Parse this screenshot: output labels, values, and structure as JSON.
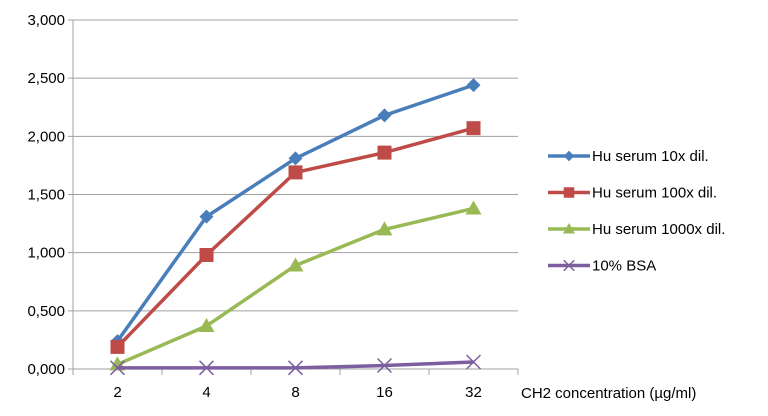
{
  "chart_data": {
    "type": "line",
    "title": "",
    "xlabel": "CH2 concentration (µg/ml)",
    "ylabel": "",
    "categories": [
      "2",
      "4",
      "8",
      "16",
      "32"
    ],
    "ylim": [
      0,
      3
    ],
    "yticks": [
      0,
      0.5,
      1,
      1.5,
      2,
      2.5,
      3
    ],
    "ytick_labels": [
      "0,000",
      "0,500",
      "1,000",
      "1,500",
      "2,000",
      "2,500",
      "3,000"
    ],
    "grid": "horizontal",
    "legend_position": "right",
    "series": [
      {
        "name": "Hu serum 10x dil.",
        "color": "#4a7ebb",
        "marker": "diamond",
        "values": [
          0.24,
          1.31,
          1.81,
          2.18,
          2.44
        ]
      },
      {
        "name": "Hu serum 100x dil.",
        "color": "#be4b48",
        "marker": "square",
        "values": [
          0.19,
          0.98,
          1.69,
          1.86,
          2.07
        ]
      },
      {
        "name": "Hu serum 1000x dil.",
        "color": "#98b954",
        "marker": "triangle",
        "values": [
          0.04,
          0.37,
          0.89,
          1.2,
          1.38
        ]
      },
      {
        "name": "10% BSA",
        "color": "#7d5fa0",
        "marker": "x",
        "values": [
          0.01,
          0.01,
          0.01,
          0.03,
          0.06
        ]
      }
    ]
  }
}
